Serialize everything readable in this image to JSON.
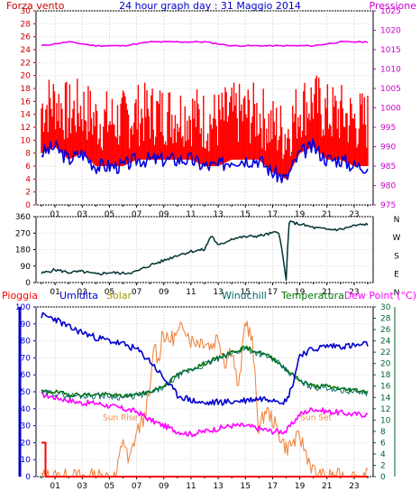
{
  "chart_data": [
    {
      "type": "line",
      "title": "24 hour graph day : 31 Maggio 2014",
      "left_label": "Forza vento",
      "right_label": "Pressione",
      "colors": {
        "wind": "#ff0000",
        "gust_line": "#0000dd",
        "pressure": "#ee00ee",
        "left_axis": "#cc0000",
        "right_axis": "#cc00cc",
        "title": "#0000cc"
      },
      "y_left": {
        "min": 0,
        "max": 30,
        "ticks": [
          "0",
          "2",
          "4",
          "6",
          "8",
          "10",
          "12",
          "14",
          "16",
          "18",
          "20",
          "22",
          "24",
          "26",
          "28",
          "30"
        ]
      },
      "y_right": {
        "min": 975,
        "max": 1025,
        "ticks": [
          "975",
          "980",
          "985",
          "990",
          "995",
          "1000",
          "1005",
          "1010",
          "1015",
          "1020",
          "1025"
        ]
      },
      "x_ticks": [
        "01",
        "03",
        "05",
        "07",
        "09",
        "11",
        "13",
        "15",
        "17",
        "19",
        "21",
        "23"
      ],
      "series": [
        {
          "name": "Forza vento",
          "unit": "wind",
          "x": [
            0,
            1,
            2,
            3,
            4,
            5,
            6,
            7,
            8,
            9,
            10,
            11,
            12,
            13,
            14,
            15,
            16,
            17,
            18,
            19,
            20,
            21,
            22,
            23,
            24
          ],
          "values": [
            8,
            9,
            7,
            8,
            6,
            6,
            6,
            7,
            7,
            7,
            7,
            7,
            6,
            6,
            7,
            7,
            7,
            5,
            4,
            8,
            9,
            7,
            7,
            6,
            6
          ]
        },
        {
          "name": "Pressione",
          "unit": "hPa",
          "x": [
            0,
            2,
            4,
            6,
            8,
            10,
            12,
            14,
            16,
            17,
            18,
            20,
            22,
            24
          ],
          "values": [
            1016,
            1017,
            1016,
            1016,
            1017,
            1017,
            1017,
            1016,
            1016,
            1016,
            1016,
            1016,
            1017,
            1017
          ]
        }
      ]
    },
    {
      "type": "line",
      "title": "",
      "y_left": {
        "min": 0,
        "max": 360,
        "ticks": [
          "0",
          "90",
          "180",
          "270",
          "360"
        ]
      },
      "right_labels": [
        "N",
        "W",
        "S",
        "E",
        "N"
      ],
      "x_ticks": [
        "01",
        "03",
        "05",
        "07",
        "09",
        "11",
        "13",
        "15",
        "17",
        "19",
        "21",
        "23"
      ],
      "colors": {
        "line": "#003333",
        "left_axis": "#000000"
      },
      "series": [
        {
          "name": "",
          "x": [
            0,
            1,
            2,
            3,
            4,
            5,
            6,
            7,
            8,
            9,
            10,
            11,
            12,
            12.5,
            13,
            14,
            15,
            16,
            17,
            17.5,
            18,
            18.2,
            19,
            20,
            21,
            22,
            23,
            24
          ],
          "values": [
            50,
            70,
            55,
            60,
            45,
            55,
            50,
            60,
            95,
            120,
            150,
            170,
            180,
            260,
            200,
            240,
            250,
            255,
            270,
            275,
            10,
            330,
            320,
            300,
            290,
            290,
            310,
            320
          ]
        }
      ]
    },
    {
      "type": "line",
      "title": "",
      "labels": {
        "pioggia": "Pioggia",
        "umidita": "Umidita",
        "solar": "Solar",
        "windchill": "Windchill",
        "temperatura": "Temperatura",
        "dewpoint": "Dew Point (°C)"
      },
      "annotations": {
        "sunrise": "Sun Rise",
        "sunset": "Sun Set"
      },
      "colors": {
        "pioggia": "#ff0000",
        "umidita": "#0000cc",
        "solar": "#ee8844",
        "windchill": "#006666",
        "temperatura": "#007700",
        "dewpoint": "#ff00ff",
        "left_axis": "#0000cc",
        "right_axis": "#006633"
      },
      "y_left": {
        "min": 0,
        "max": 100,
        "ticks": [
          "0",
          "10",
          "20",
          "30",
          "40",
          "50",
          "60",
          "70",
          "80",
          "90",
          "100"
        ]
      },
      "y_right": {
        "min": 0,
        "max": 30,
        "ticks": [
          "0",
          "2",
          "4",
          "6",
          "8",
          "10",
          "12",
          "14",
          "16",
          "18",
          "20",
          "22",
          "24",
          "26",
          "28",
          "30"
        ]
      },
      "x_ticks": [
        "01",
        "03",
        "05",
        "07",
        "09",
        "11",
        "13",
        "15",
        "17",
        "19",
        "21",
        "23"
      ],
      "series": [
        {
          "name": "Umidita",
          "x": [
            0,
            1,
            2,
            3,
            4,
            5,
            6,
            7,
            8,
            9,
            10,
            11,
            12,
            13,
            14,
            15,
            16,
            17,
            18,
            18.5,
            19,
            20,
            21,
            22,
            23,
            24
          ],
          "values": [
            95,
            93,
            88,
            85,
            82,
            80,
            78,
            75,
            68,
            58,
            48,
            45,
            43,
            44,
            44,
            45,
            46,
            46,
            44,
            55,
            72,
            75,
            77,
            77,
            77,
            78
          ]
        },
        {
          "name": "Temperatura",
          "x": [
            0,
            1,
            2,
            3,
            4,
            5,
            6,
            7,
            8,
            9,
            10,
            11,
            12,
            13,
            14,
            15,
            16,
            17,
            18,
            19,
            20,
            21,
            22,
            23,
            24
          ],
          "values": [
            15,
            15,
            14.5,
            14.5,
            14.5,
            14.5,
            14.2,
            14.5,
            15,
            16,
            18,
            19,
            20,
            21,
            22,
            22.8,
            22,
            21,
            19,
            17,
            16,
            16,
            15.5,
            15.3,
            15
          ]
        },
        {
          "name": "Dew Point",
          "x": [
            0,
            1,
            2,
            3,
            4,
            5,
            6,
            7,
            8,
            9,
            10,
            11,
            12,
            13,
            14,
            15,
            16,
            17,
            18,
            19,
            20,
            21,
            22,
            23,
            24
          ],
          "values": [
            14.5,
            14,
            13.5,
            13,
            13,
            12.5,
            12,
            11.5,
            10,
            9,
            8,
            7.5,
            8,
            8.5,
            9,
            9,
            8.5,
            8,
            8,
            11,
            12,
            11.5,
            11.3,
            11,
            11
          ]
        },
        {
          "name": "Solar",
          "x": [
            0,
            5,
            5.5,
            6,
            6.2,
            6.4,
            7,
            7.5,
            8,
            8.3,
            8.6,
            8.9,
            9.2,
            10,
            10.5,
            11,
            12,
            12.5,
            13,
            13.5,
            14,
            14.5,
            15,
            15.5,
            16,
            16.5,
            17,
            18,
            19,
            20,
            20.5,
            20.7,
            21,
            24
          ],
          "values": [
            0,
            0,
            0,
            7,
            5,
            2,
            8,
            10,
            15,
            24,
            20,
            26,
            24,
            25,
            27,
            24,
            24,
            23,
            25,
            20,
            23,
            15,
            28,
            24,
            8,
            12,
            10,
            5,
            7,
            1,
            0,
            0,
            0,
            0
          ]
        },
        {
          "name": "Pioggia",
          "x": [
            0,
            0.3,
            0.3,
            24
          ],
          "values": [
            6,
            6,
            0,
            0
          ]
        }
      ]
    }
  ]
}
